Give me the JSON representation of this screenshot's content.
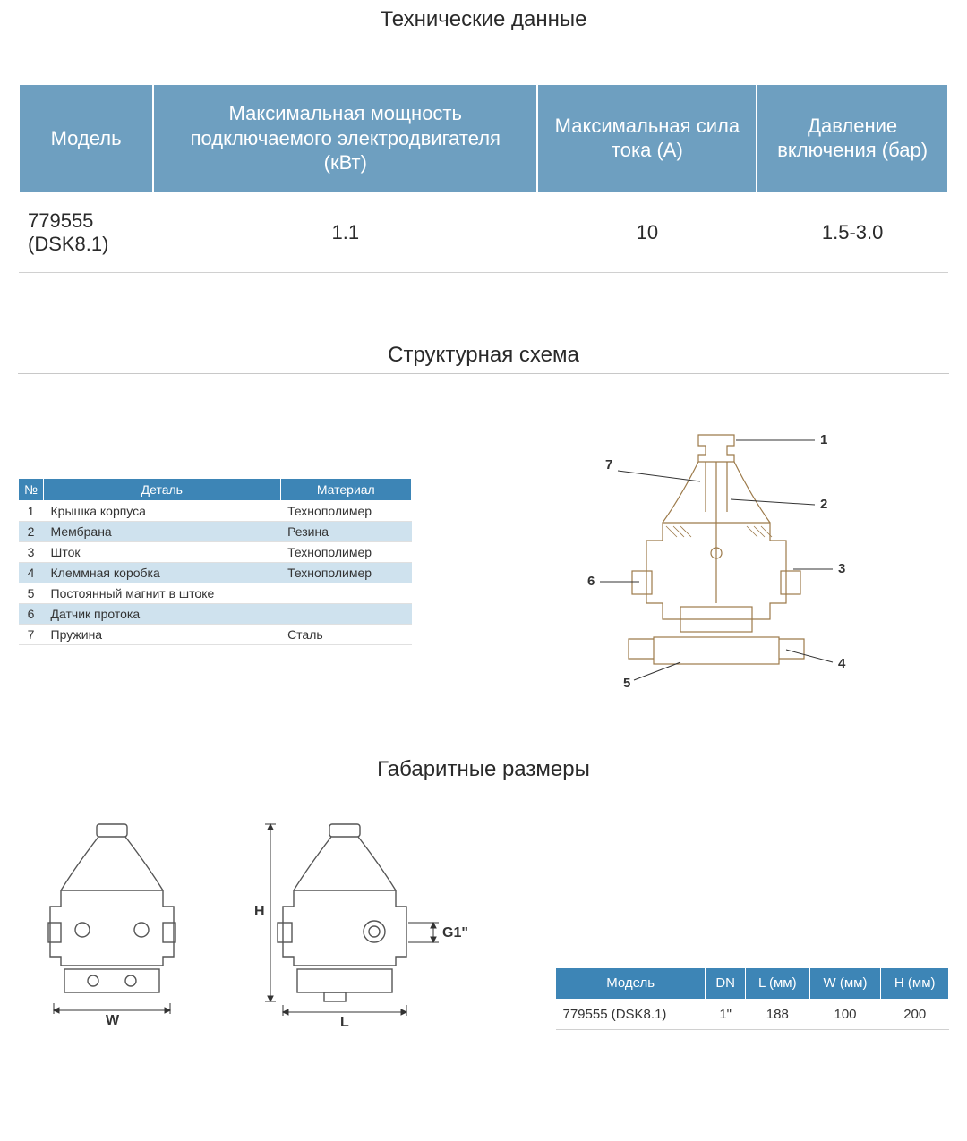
{
  "colors": {
    "header_blue_light": "#6e9fc0",
    "header_blue_dark": "#3d85b6",
    "row_alt_blue": "#cfe2ee",
    "text": "#2a2a2a",
    "rule": "#c8c8c8",
    "diagram_stroke": "#9c7a4a"
  },
  "sections": {
    "tech_title": "Технические данные",
    "struct_title": "Структурная схема",
    "dims_title": "Габаритные размеры"
  },
  "tech_table": {
    "headers": [
      "Модель",
      "Максимальная мощность подключаемого электродвигателя (кВт)",
      "Максимальная сила тока (А)",
      "Давление включения (бар)"
    ],
    "row": [
      "779555 (DSK8.1)",
      "1.1",
      "10",
      "1.5-3.0"
    ]
  },
  "parts_table": {
    "headers": [
      "№",
      "Деталь",
      "Материал"
    ],
    "rows": [
      {
        "n": "1",
        "part": "Крышка корпуса",
        "mat": "Технополимер"
      },
      {
        "n": "2",
        "part": "Мембрана",
        "mat": "Резина"
      },
      {
        "n": "3",
        "part": "Шток",
        "mat": "Технополимер"
      },
      {
        "n": "4",
        "part": "Клеммная коробка",
        "mat": "Технополимер"
      },
      {
        "n": "5",
        "part": "Постоянный магнит в штоке",
        "mat": ""
      },
      {
        "n": "6",
        "part": "Датчик протока",
        "mat": ""
      },
      {
        "n": "7",
        "part": "Пружина",
        "mat": "Сталь"
      }
    ]
  },
  "struct_callouts": {
    "1": "1",
    "2": "2",
    "3": "3",
    "4": "4",
    "5": "5",
    "6": "6",
    "7": "7"
  },
  "dims_drawing_labels": {
    "W": "W",
    "L": "L",
    "H": "H",
    "G1": "G1\""
  },
  "dims_table": {
    "headers": [
      "Модель",
      "DN",
      "L (мм)",
      "W (мм)",
      "H (мм)"
    ],
    "row": [
      "779555 (DSK8.1)",
      "1\"",
      "188",
      "100",
      "200"
    ]
  }
}
